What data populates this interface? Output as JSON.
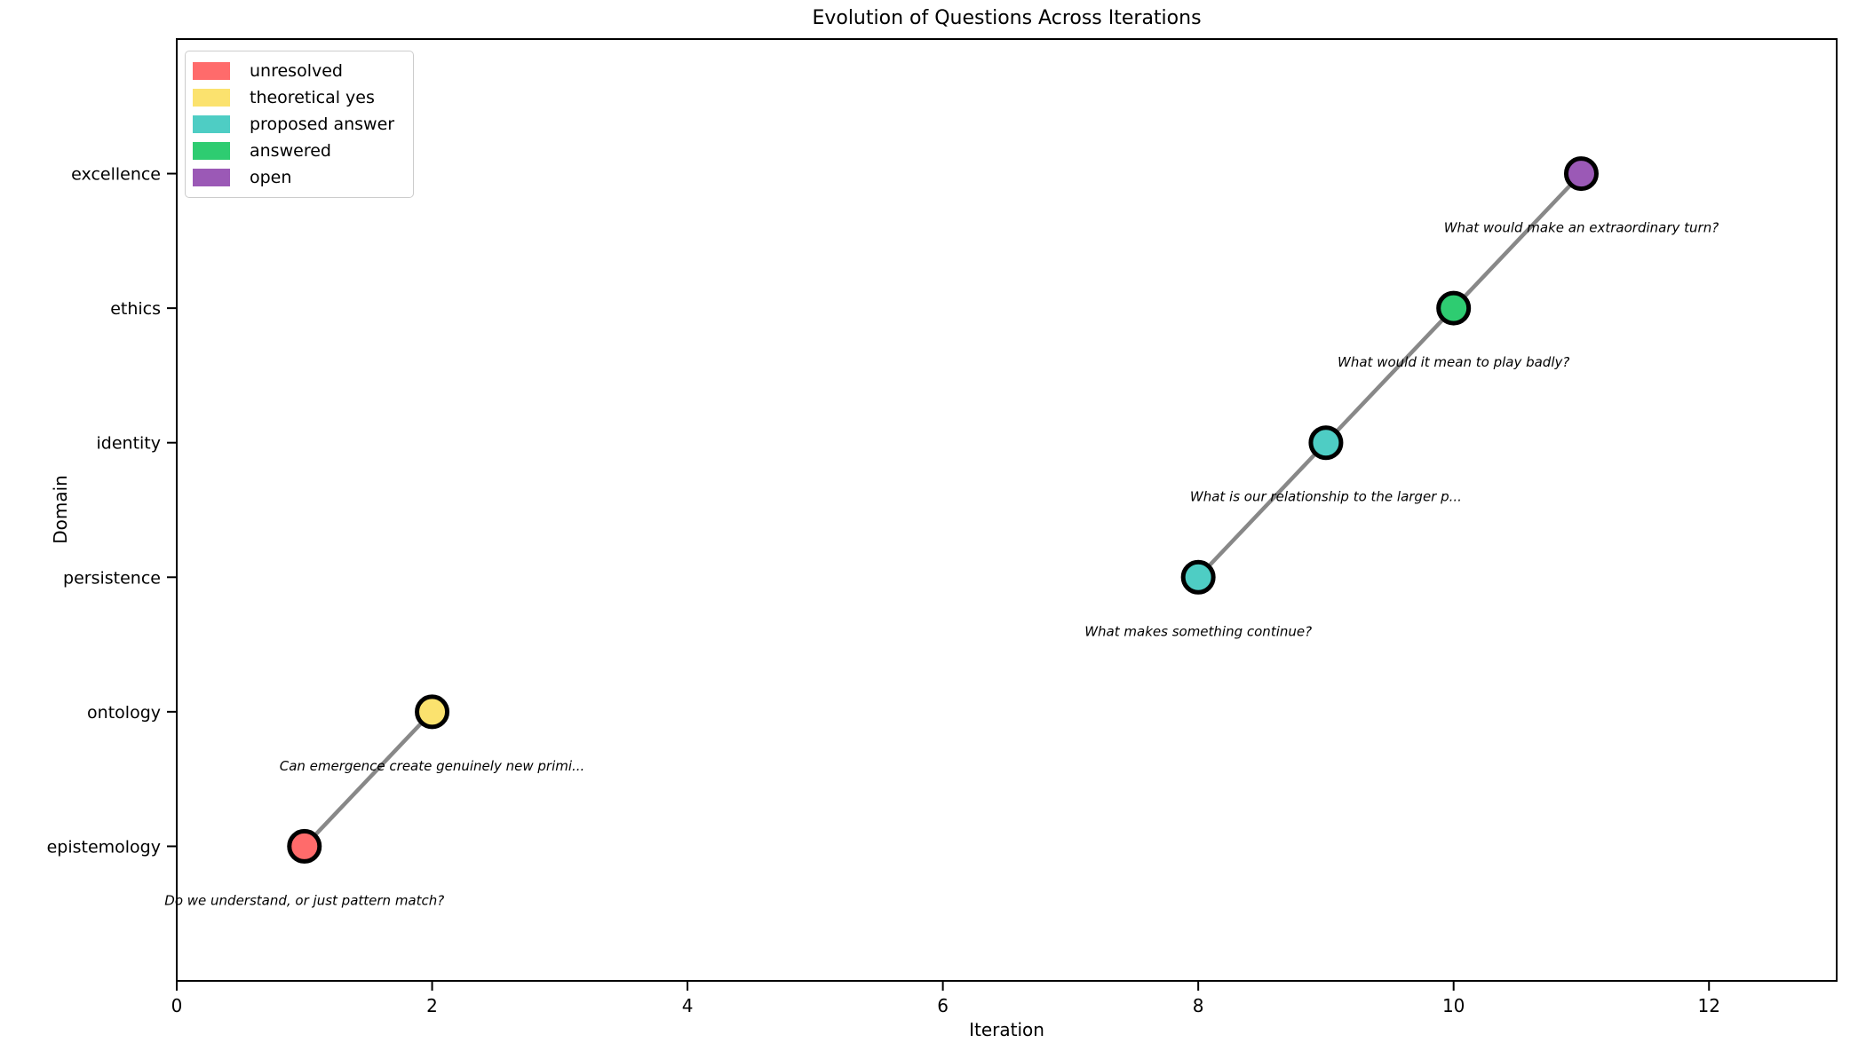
{
  "chart_data": {
    "type": "scatter",
    "title": "Evolution of Questions Across Iterations",
    "xlabel": "Iteration",
    "ylabel": "Domain",
    "xlim": [
      0,
      13
    ],
    "x_ticks": [
      0,
      2,
      4,
      6,
      8,
      10,
      12
    ],
    "y_categories": [
      "epistemology",
      "ontology",
      "persistence",
      "identity",
      "ethics",
      "excellence"
    ],
    "grid": false,
    "legend_position": "upper left",
    "line_color": "#888888",
    "marker_edge_color": "#000000",
    "points": [
      {
        "x": 1,
        "domain": "epistemology",
        "status": "unresolved",
        "color": "#ff6b6b",
        "annotation": "Do we understand, or just pattern match?"
      },
      {
        "x": 2,
        "domain": "ontology",
        "status": "theoretical yes",
        "color": "#fbe26e",
        "annotation": "Can emergence create genuinely new primi..."
      },
      {
        "x": 8,
        "domain": "persistence",
        "status": "proposed answer",
        "color": "#4ecdc4",
        "annotation": "What makes something continue?"
      },
      {
        "x": 9,
        "domain": "identity",
        "status": "proposed answer",
        "color": "#4ecdc4",
        "annotation": "What is our relationship to the larger p..."
      },
      {
        "x": 10,
        "domain": "ethics",
        "status": "answered",
        "color": "#2ecc71",
        "annotation": "What would it mean to play badly?"
      },
      {
        "x": 11,
        "domain": "excellence",
        "status": "open",
        "color": "#9b59b6",
        "annotation": "What would make an extraordinary turn?"
      }
    ],
    "segments": [
      [
        0,
        1
      ],
      [
        2,
        3
      ],
      [
        3,
        4
      ],
      [
        4,
        5
      ]
    ],
    "legend": [
      {
        "label": "unresolved",
        "color": "#ff6b6b"
      },
      {
        "label": "theoretical yes",
        "color": "#fbe26e"
      },
      {
        "label": "proposed answer",
        "color": "#4ecdc4"
      },
      {
        "label": "answered",
        "color": "#2ecc71"
      },
      {
        "label": "open",
        "color": "#9b59b6"
      }
    ]
  }
}
